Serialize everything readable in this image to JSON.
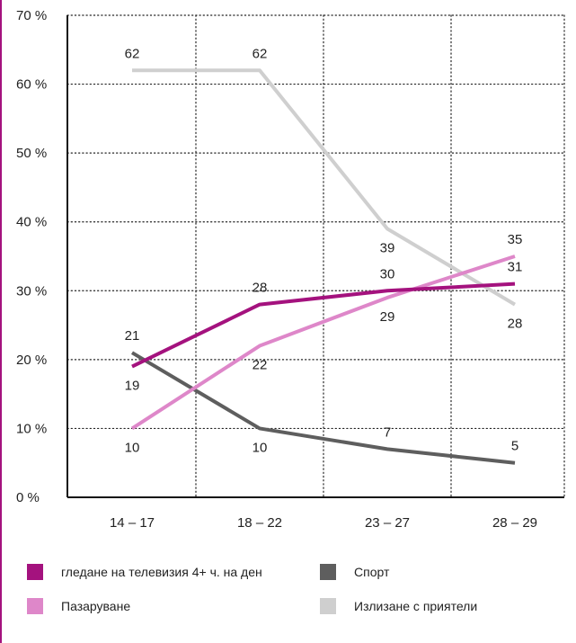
{
  "chart_data": {
    "type": "line",
    "title": "",
    "xlabel": "",
    "ylabel": "",
    "categories": [
      "14 – 17",
      "18 – 22",
      "23 – 27",
      "28 – 29"
    ],
    "y_ticks": [
      "0 %",
      "10 %",
      "20 %",
      "30 %",
      "40 %",
      "50 %",
      "60 %",
      "70 %"
    ],
    "ylim": [
      0,
      70
    ],
    "grid": "dotted",
    "legend_position": "bottom",
    "series": [
      {
        "name": "гледане на телевизия 4+ ч. на ден",
        "color": "#a4127e",
        "values": [
          19,
          28,
          30,
          31
        ],
        "labels": [
          "19",
          "28",
          "30",
          "31"
        ]
      },
      {
        "name": "Пазаруване",
        "color": "#de87c9",
        "values": [
          10,
          22,
          29,
          35
        ],
        "labels": [
          "10",
          "22",
          "29",
          "35"
        ]
      },
      {
        "name": "Спорт",
        "color": "#5e5e5e",
        "values": [
          21,
          10,
          7,
          5
        ],
        "labels": [
          "21",
          "10",
          "7",
          "5"
        ]
      },
      {
        "name": "Излизане с приятели",
        "color": "#cfcfcf",
        "values": [
          62,
          62,
          39,
          28
        ],
        "labels": [
          "62",
          "62",
          "39",
          "28"
        ]
      }
    ]
  }
}
